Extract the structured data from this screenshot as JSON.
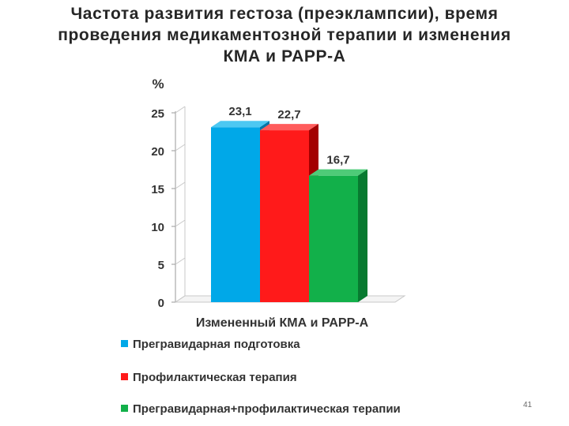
{
  "slide": {
    "title_lines": [
      "Частота развития гестоза (преэклампсии), время",
      "проведения медикаментозной терапии и изменения",
      "КМА и PAPP-A"
    ],
    "page_number": "41"
  },
  "chart_data": {
    "type": "bar",
    "style": "3d",
    "ylabel": "%",
    "xlabel": "Измененный КМА и PAPP-A",
    "ylim": [
      0,
      25
    ],
    "yticks": [
      "0",
      "5",
      "10",
      "15",
      "20",
      "25"
    ],
    "grid": false,
    "legend_position": "bottom",
    "categories": [
      "Измененный КМА и PAPP-A"
    ],
    "series": [
      {
        "name": "Прегравидарная подготовка",
        "values": [
          23.1
        ],
        "label": "23,1",
        "color": "#00A8E8",
        "side_color": "#0076A8",
        "top_color": "#4CC8F2"
      },
      {
        "name": "Профилактическая терапия",
        "values": [
          22.7
        ],
        "label": "22,7",
        "color": "#FF1A1A",
        "side_color": "#A30000",
        "top_color": "#FF5C5C"
      },
      {
        "name": "Прегравидарная+профилактическая терапии",
        "values": [
          16.7
        ],
        "label": "16,7",
        "color": "#12B04A",
        "side_color": "#087A30",
        "top_color": "#4ECB78"
      }
    ]
  }
}
